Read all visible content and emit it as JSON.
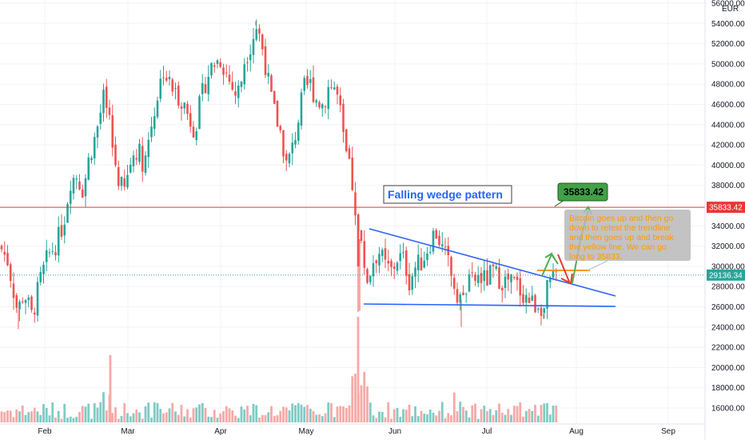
{
  "chart_data": {
    "type": "candlestick",
    "currency": "EUR",
    "y_axis_ticks": [
      "56000.00",
      "54000.00",
      "52000.00",
      "50000.00",
      "48000.00",
      "46000.00",
      "44000.00",
      "42000.00",
      "40000.00",
      "38000.00",
      "36000.00",
      "34000.00",
      "32000.00",
      "30000.00",
      "28000.00",
      "26000.00",
      "24000.00",
      "22000.00",
      "20000.00",
      "18000.00",
      "16000.00"
    ],
    "x_axis_ticks": [
      "Feb",
      "Mar",
      "Apr",
      "May",
      "Jun",
      "Jul",
      "Aug",
      "Sep"
    ],
    "ylim": [
      14800,
      57000
    ],
    "colors": {
      "up": "#26a69a",
      "down": "#ef5350",
      "vol_up": "#80cbc4",
      "vol_down": "#f7a9a7",
      "resistance": "#e53935",
      "trendline": "#2962ff",
      "current_price": "#26a69a"
    },
    "horizontal_levels": [
      {
        "label": "35833.42",
        "value": 35833.42,
        "color": "#e53935"
      },
      {
        "label": "29136.34",
        "value": 29136.34,
        "color": "#26a69a"
      }
    ],
    "key_points": [
      {
        "date": "Jan 21",
        "low": 23800
      },
      {
        "date": "Apr 14",
        "high": 54200
      },
      {
        "date": "May 19",
        "low": 25500
      },
      {
        "date": "Jun 22",
        "low": 24000
      },
      {
        "date": "Jul 20",
        "low": 24800
      },
      {
        "date": "Jul 24",
        "close": 29136.34
      }
    ],
    "wedge": {
      "upper_line": [
        {
          "date": "May 23",
          "price": 34000
        },
        {
          "date": "Aug 1",
          "price": 27000
        }
      ],
      "lower_line": [
        {
          "date": "May 23",
          "price": 26300
        },
        {
          "date": "Aug 1",
          "price": 26100
        }
      ]
    },
    "annotations": {
      "title": "Falling wedge pattern",
      "target_label": "35833.42",
      "callout": "Bitcoin goes up and then go down to retest the trendline and then goes up and break the yellow line.  We can go long to 35833."
    }
  }
}
